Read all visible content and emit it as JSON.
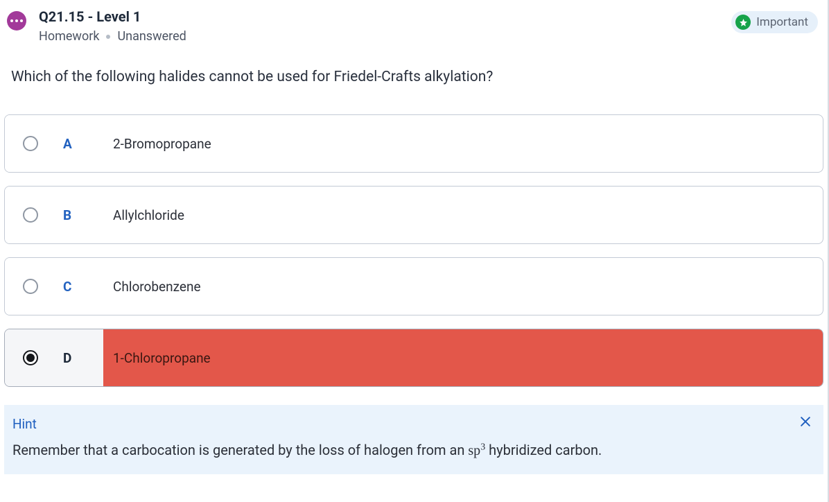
{
  "header": {
    "question_id": "Q21.15 - Level 1",
    "category": "Homework",
    "status": "Unanswered",
    "important_label": "Important"
  },
  "question": {
    "prompt": "Which of the following halides cannot be used for Friedel-Crafts alkylation?"
  },
  "options": [
    {
      "letter": "A",
      "text": "2-Bromopropane",
      "selected": false,
      "incorrect": false
    },
    {
      "letter": "B",
      "text": "Allylchloride",
      "selected": false,
      "incorrect": false
    },
    {
      "letter": "C",
      "text": "Chlorobenzene",
      "selected": false,
      "incorrect": false
    },
    {
      "letter": "D",
      "text": "1-Chloropropane",
      "selected": true,
      "incorrect": true
    }
  ],
  "hint": {
    "label": "Hint",
    "text_before": "Remember that a carbocation is generated by the loss of halogen from an ",
    "sp_base": "sp",
    "sp_exp": "3",
    "text_after": " hybridized carbon."
  },
  "colors": {
    "accent_purple": "#a23a9a",
    "option_letter": "#2362c0",
    "incorrect_fill": "#e3574a",
    "hint_bg": "#eaf3fc",
    "hint_accent": "#1f5fbf",
    "border": "#c3cad5",
    "important_badge_bg": "#e6f0fa",
    "important_star_bg": "#16a34a"
  }
}
